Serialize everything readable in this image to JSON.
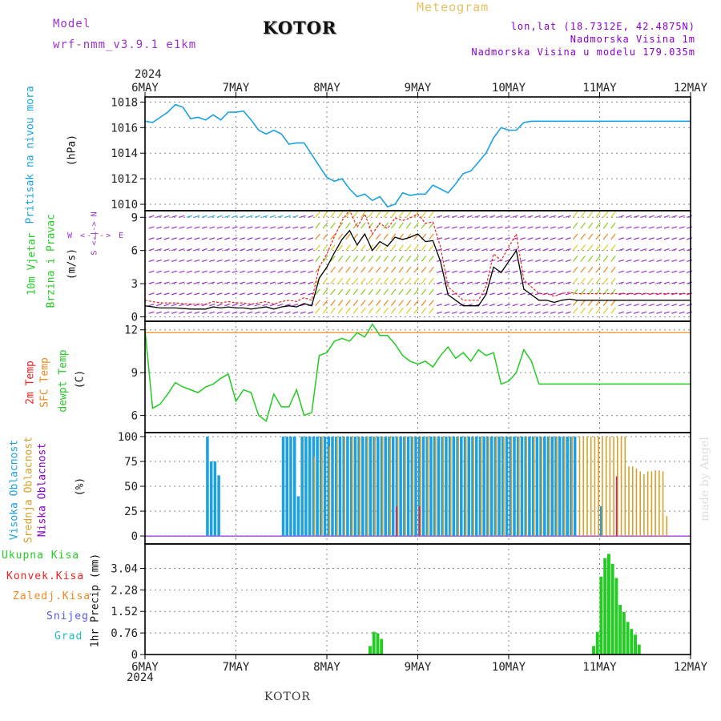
{
  "header": {
    "model_label": "Model",
    "model_name": "wrf-nmm_v3.9.1 e1km",
    "title": "KOTOR",
    "meteogram_label": "Meteogram",
    "lonlat": "lon,lat (18.7312E, 42.4875N)",
    "elevation": "Nadmorska Visina 1m",
    "model_elevation": "Nadmorska Visina u modelu 179.035m",
    "footer_title": "KOTOR",
    "watermark": "made by Angel"
  },
  "colors": {
    "cyan": "#1ba1e2",
    "green": "#22cc22",
    "red": "#ee2222",
    "orange": "#ee8822",
    "purple": "#9933cc",
    "tan": "#e8c060",
    "goldenrod": "#d8a02a",
    "blue": "#5555ee",
    "teal": "#22bbbb",
    "violet": "#8800cc"
  },
  "time_axis": {
    "year": "2024",
    "days": [
      "6MAY",
      "7MAY",
      "8MAY",
      "9MAY",
      "10MAY",
      "11MAY",
      "12MAY"
    ]
  },
  "panels": {
    "pressure": {
      "label1": "Pritisak na nivou mora",
      "unit": "(hPa)"
    },
    "wind": {
      "label1": "10m Vjetar",
      "label2": "Brzina i Pravac",
      "unit": "(m/s)",
      "compass_ns": "S <-|-> N",
      "compass_we": "W <-|-> E"
    },
    "temp": {
      "label1": "2m Temp",
      "label2": "SFC Temp",
      "label3": "dewpt Temp",
      "unit": "(C)"
    },
    "cloud": {
      "label1": "Visoka Oblacnost",
      "label2": "Srednja Oblacnost",
      "label3": "Niska Oblacnost",
      "unit": "(%)"
    },
    "precip": {
      "label1": "Ukupna Kisa",
      "label2": "Konvek.Kisa",
      "label3": "Zaledj.Kisa",
      "label4": "Snijeg",
      "label5": "Grad",
      "unit": "1hr Precip (mm)"
    }
  },
  "chart_data": [
    {
      "type": "line",
      "name": "pressure",
      "ylim": [
        1009.5,
        1018.4
      ],
      "yticks": [
        "1010",
        "1012",
        "1014",
        "1016",
        "1018"
      ],
      "x": [
        0,
        2,
        4,
        6,
        8,
        10,
        12,
        14,
        16,
        18,
        20,
        22,
        24,
        26,
        28,
        30,
        32,
        34,
        36,
        38,
        40,
        42,
        44,
        46,
        48,
        50,
        52,
        54,
        56,
        58,
        60,
        62,
        64,
        66,
        68,
        70,
        72,
        74,
        76,
        78,
        80,
        82,
        84,
        86,
        88,
        90,
        92,
        94,
        96,
        98,
        100,
        102,
        104,
        106,
        108,
        110,
        112,
        114,
        116,
        118,
        120,
        122,
        124,
        126,
        128,
        130,
        132,
        134,
        136,
        138,
        140,
        142,
        144
      ],
      "values": [
        1016.5,
        1016.4,
        1016.8,
        1017.2,
        1017.8,
        1017.6,
        1016.7,
        1016.8,
        1016.6,
        1017.0,
        1016.6,
        1017.2,
        1017.2,
        1017.3,
        1016.6,
        1015.8,
        1015.5,
        1015.8,
        1015.5,
        1014.7,
        1014.8,
        1014.8,
        1013.9,
        1013.0,
        1012.1,
        1011.8,
        1012.0,
        1011.2,
        1010.6,
        1010.8,
        1010.3,
        1010.6,
        1009.8,
        1010.0,
        1010.9,
        1010.7,
        1010.8,
        1010.8,
        1011.5,
        1011.2,
        1010.9,
        1011.6,
        1012.4,
        1012.6,
        1013.3,
        1014.0,
        1015.2,
        1016.0,
        1015.8,
        1015.8,
        1016.4,
        1016.5,
        1016.5,
        1016.5,
        1016.5,
        1016.5,
        1016.5,
        1016.5,
        1016.5,
        1016.5,
        1016.5,
        1016.5,
        1016.5,
        1016.5,
        1016.5,
        1016.5,
        1016.5,
        1016.5,
        1016.5,
        1016.5,
        1016.5,
        1016.5,
        1016.5
      ]
    },
    {
      "type": "line",
      "name": "wind",
      "ylim": [
        -0.4,
        9.6
      ],
      "yticks": [
        "0",
        "3",
        "6",
        "9"
      ],
      "series": [
        {
          "values_x": [
            0,
            4,
            8,
            12,
            16,
            18,
            20,
            22,
            24,
            26,
            28,
            30,
            32,
            34,
            36,
            38,
            40,
            42,
            44,
            46,
            48,
            50,
            52,
            54,
            56,
            58,
            60,
            62,
            64,
            66,
            68,
            70,
            72,
            74,
            76,
            78,
            80,
            82,
            84,
            86,
            88,
            90,
            92,
            94,
            96,
            98,
            100,
            102,
            104,
            106,
            108,
            110,
            112,
            114,
            116,
            118,
            120,
            122,
            124,
            126,
            128,
            130,
            132,
            134,
            136,
            138,
            140,
            142,
            144
          ],
          "values": [
            1.0,
            0.8,
            0.8,
            0.7,
            0.7,
            0.9,
            0.8,
            0.9,
            0.8,
            0.8,
            0.7,
            0.8,
            0.9,
            0.7,
            0.9,
            1.0,
            0.9,
            1.2,
            1.0,
            3.5,
            4.5,
            5.8,
            7.0,
            7.8,
            6.5,
            7.5,
            6.0,
            6.8,
            6.4,
            7.2,
            7.0,
            7.2,
            7.5,
            6.8,
            6.9,
            5.0,
            2.0,
            1.5,
            1.0,
            1.0,
            1.0,
            2.0,
            4.5,
            4.0,
            5.0,
            6.0,
            2.5,
            2.0,
            1.5,
            1.5,
            1.3,
            1.5,
            1.6,
            1.5,
            1.5,
            1.5,
            1.5,
            1.5,
            1.5,
            1.5,
            1.5,
            1.5,
            1.5,
            1.5,
            1.5,
            1.5,
            1.5,
            1.5,
            1.5
          ]
        }
      ]
    },
    {
      "type": "line",
      "name": "temperature",
      "ylim": [
        4.8,
        12.6
      ],
      "yticks": [
        "6",
        "9",
        "12"
      ],
      "sfc_temp": 11.8,
      "x": [
        0,
        2,
        4,
        6,
        8,
        10,
        12,
        14,
        16,
        18,
        20,
        22,
        24,
        26,
        28,
        30,
        32,
        34,
        36,
        38,
        40,
        42,
        44,
        46,
        48,
        50,
        52,
        54,
        56,
        58,
        60,
        62,
        64,
        66,
        68,
        70,
        72,
        74,
        76,
        78,
        80,
        82,
        84,
        86,
        88,
        90,
        92,
        94,
        96,
        98,
        100,
        102,
        104,
        106,
        108,
        110,
        112,
        114,
        116,
        118,
        120,
        122,
        124,
        126,
        128,
        130,
        132,
        134,
        136,
        138,
        140,
        142,
        144
      ],
      "values": [
        12.0,
        6.5,
        6.8,
        7.5,
        8.3,
        8.0,
        7.8,
        7.6,
        8.0,
        8.2,
        8.6,
        8.9,
        7.0,
        7.8,
        7.6,
        6.0,
        5.6,
        7.5,
        6.6,
        6.6,
        7.8,
        6.0,
        6.2,
        10.2,
        10.4,
        11.2,
        11.4,
        11.2,
        11.8,
        11.5,
        12.4,
        11.6,
        11.6,
        11.0,
        10.2,
        9.8,
        9.6,
        9.8,
        9.4,
        10.2,
        10.8,
        10.0,
        10.4,
        9.8,
        10.6,
        10.2,
        10.4,
        8.2,
        8.4,
        9.0,
        10.6,
        9.8,
        8.2,
        8.2,
        8.2,
        8.2,
        8.2,
        8.2,
        8.2,
        8.2,
        8.2,
        8.2,
        8.2,
        8.2,
        8.2,
        8.2,
        8.2,
        8.2,
        8.2,
        8.2,
        8.2,
        8.2,
        8.2
      ]
    },
    {
      "type": "bar",
      "name": "cloud",
      "ylim": [
        -8,
        104
      ],
      "yticks": [
        "0",
        "25",
        "50",
        "75",
        "100"
      ],
      "high": [
        [
          16,
          100
        ],
        [
          17,
          75
        ],
        [
          18,
          75
        ],
        [
          19,
          61
        ],
        [
          36,
          100
        ],
        [
          37,
          100
        ],
        [
          38,
          100
        ],
        [
          39,
          100
        ],
        [
          40,
          40
        ],
        [
          41,
          100
        ],
        [
          42,
          100
        ],
        [
          43,
          100
        ],
        [
          44,
          100
        ],
        [
          45,
          100
        ],
        [
          46,
          100
        ],
        [
          47,
          100
        ],
        [
          48,
          100
        ],
        [
          49,
          100
        ],
        [
          50,
          100
        ],
        [
          51,
          100
        ],
        [
          52,
          100
        ],
        [
          53,
          100
        ],
        [
          54,
          100
        ],
        [
          55,
          100
        ],
        [
          56,
          100
        ],
        [
          57,
          100
        ],
        [
          58,
          100
        ],
        [
          59,
          100
        ],
        [
          60,
          100
        ],
        [
          61,
          100
        ],
        [
          62,
          100
        ],
        [
          63,
          100
        ],
        [
          64,
          100
        ],
        [
          65,
          100
        ],
        [
          66,
          100
        ],
        [
          67,
          100
        ],
        [
          68,
          100
        ],
        [
          69,
          100
        ],
        [
          70,
          100
        ],
        [
          71,
          100
        ],
        [
          72,
          100
        ],
        [
          73,
          100
        ],
        [
          74,
          100
        ],
        [
          75,
          100
        ],
        [
          76,
          100
        ],
        [
          77,
          100
        ],
        [
          78,
          100
        ],
        [
          79,
          100
        ],
        [
          80,
          100
        ],
        [
          81,
          100
        ],
        [
          82,
          100
        ],
        [
          83,
          100
        ],
        [
          84,
          100
        ],
        [
          85,
          100
        ],
        [
          86,
          100
        ],
        [
          87,
          100
        ],
        [
          88,
          100
        ],
        [
          89,
          100
        ],
        [
          90,
          100
        ],
        [
          91,
          100
        ],
        [
          92,
          100
        ],
        [
          93,
          100
        ],
        [
          94,
          100
        ],
        [
          95,
          100
        ],
        [
          96,
          100
        ],
        [
          97,
          100
        ],
        [
          98,
          100
        ],
        [
          99,
          100
        ],
        [
          100,
          100
        ],
        [
          101,
          100
        ],
        [
          102,
          100
        ],
        [
          103,
          100
        ],
        [
          104,
          100
        ],
        [
          105,
          100
        ],
        [
          106,
          100
        ],
        [
          107,
          100
        ],
        [
          108,
          100
        ],
        [
          109,
          100
        ],
        [
          110,
          100
        ],
        [
          111,
          100
        ],
        [
          112,
          100
        ],
        [
          113,
          100
        ],
        [
          120,
          30
        ]
      ],
      "mid": [
        [
          44,
          80
        ],
        [
          46,
          100
        ],
        [
          48,
          90
        ],
        [
          50,
          100
        ],
        [
          52,
          100
        ],
        [
          54,
          100
        ],
        [
          56,
          100
        ],
        [
          58,
          100
        ],
        [
          60,
          100
        ],
        [
          62,
          100
        ],
        [
          64,
          100
        ],
        [
          66,
          100
        ],
        [
          68,
          100
        ],
        [
          70,
          100
        ],
        [
          72,
          100
        ],
        [
          74,
          100
        ],
        [
          76,
          100
        ],
        [
          78,
          100
        ],
        [
          80,
          100
        ],
        [
          82,
          100
        ],
        [
          84,
          100
        ],
        [
          86,
          100
        ],
        [
          88,
          100
        ],
        [
          90,
          100
        ],
        [
          92,
          100
        ],
        [
          94,
          100
        ],
        [
          96,
          100
        ],
        [
          98,
          100
        ],
        [
          100,
          100
        ],
        [
          102,
          100
        ],
        [
          104,
          100
        ],
        [
          106,
          100
        ],
        [
          108,
          100
        ],
        [
          110,
          100
        ],
        [
          112,
          100
        ],
        [
          114,
          100
        ],
        [
          115,
          100
        ],
        [
          116,
          100
        ],
        [
          117,
          100
        ],
        [
          118,
          100
        ],
        [
          119,
          100
        ],
        [
          120,
          100
        ],
        [
          121,
          100
        ],
        [
          122,
          100
        ],
        [
          123,
          100
        ],
        [
          124,
          100
        ],
        [
          125,
          100
        ],
        [
          126,
          100
        ],
        [
          127,
          70
        ],
        [
          128,
          70
        ],
        [
          129,
          68
        ],
        [
          130,
          65
        ],
        [
          131,
          62
        ],
        [
          132,
          65
        ],
        [
          133,
          65
        ],
        [
          134,
          66
        ],
        [
          135,
          66
        ],
        [
          136,
          65
        ],
        [
          137,
          20
        ]
      ],
      "low": [
        [
          66,
          30
        ],
        [
          72,
          30
        ],
        [
          124,
          60
        ]
      ]
    },
    {
      "type": "bar",
      "name": "precip",
      "ylim": [
        0,
        3.9
      ],
      "yticks": [
        "0",
        "0.76",
        "1.52",
        "2.28",
        "3.04"
      ],
      "x": [
        59,
        60,
        61,
        62,
        118,
        119,
        120,
        121,
        122,
        123,
        124,
        125,
        126,
        127,
        128,
        129,
        130
      ],
      "values": [
        0.3,
        0.8,
        0.75,
        0.55,
        0.3,
        0.8,
        2.75,
        3.4,
        3.55,
        3.2,
        2.7,
        1.75,
        1.5,
        1.15,
        0.9,
        0.7,
        0.35
      ]
    }
  ]
}
